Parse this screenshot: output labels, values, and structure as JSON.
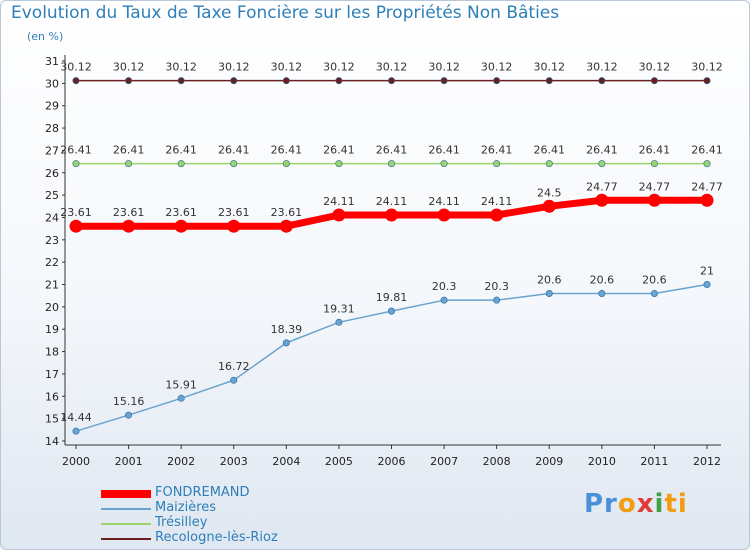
{
  "header": {
    "title": "Evolution du Taux de Taxe Foncière sur les Propriétés Non Bâties",
    "subtitle": "(en %)"
  },
  "logo": {
    "parts": [
      "Pr",
      "o",
      "x",
      "i",
      "ti"
    ],
    "colors": [
      "#4a90d9",
      "#f39c12",
      "#e53935",
      "#43a047",
      "#f39c12"
    ]
  },
  "chart_data": {
    "type": "line",
    "title": "Evolution du Taux de Taxe Foncière sur les Propriétés Non Bâties",
    "ylabel": "(en %)",
    "xlabel": "",
    "x": [
      "2000",
      "2001",
      "2002",
      "2003",
      "2004",
      "2005",
      "2006",
      "2007",
      "2008",
      "2009",
      "2010",
      "2011",
      "2012"
    ],
    "ylim": [
      14,
      31
    ],
    "yticks": [
      14,
      15,
      16,
      17,
      18,
      19,
      20,
      21,
      22,
      23,
      24,
      25,
      26,
      27,
      28,
      29,
      30,
      31
    ],
    "grid": false,
    "legend_position": "bottom-left",
    "series": [
      {
        "name": "Recologne-lès-Rioz",
        "color": "#6b1f1f",
        "values": [
          30.12,
          30.12,
          30.12,
          30.12,
          30.12,
          30.12,
          30.12,
          30.12,
          30.12,
          30.12,
          30.12,
          30.12,
          30.12
        ],
        "labels": [
          "30.12",
          "30.12",
          "30.12",
          "30.12",
          "30.12",
          "30.12",
          "30.12",
          "30.12",
          "30.12",
          "30.12",
          "30.12",
          "30.12",
          "30.12"
        ]
      },
      {
        "name": "Trésilley",
        "color": "#9bd46a",
        "values": [
          26.41,
          26.41,
          26.41,
          26.41,
          26.41,
          26.41,
          26.41,
          26.41,
          26.41,
          26.41,
          26.41,
          26.41,
          26.41
        ],
        "labels": [
          "26.41",
          "26.41",
          "26.41",
          "26.41",
          "26.41",
          "26.41",
          "26.41",
          "26.41",
          "26.41",
          "26.41",
          "26.41",
          "26.41",
          "26.41"
        ]
      },
      {
        "name": "FONDREMAND",
        "color": "#ff0000",
        "values": [
          23.61,
          23.61,
          23.61,
          23.61,
          23.61,
          24.11,
          24.11,
          24.11,
          24.11,
          24.5,
          24.77,
          24.77,
          24.77
        ],
        "labels": [
          "23.61",
          "23.61",
          "23.61",
          "23.61",
          "23.61",
          "24.11",
          "24.11",
          "24.11",
          "24.11",
          "24.5",
          "24.77",
          "24.77",
          "24.77"
        ]
      },
      {
        "name": "Maizières",
        "color": "#6aa3cf",
        "values": [
          14.44,
          15.16,
          15.91,
          16.72,
          18.39,
          19.31,
          19.81,
          20.3,
          20.3,
          20.6,
          20.6,
          20.6,
          21
        ],
        "labels": [
          "14.44",
          "15.16",
          "15.91",
          "16.72",
          "18.39",
          "19.31",
          "19.81",
          "20.3",
          "20.3",
          "20.6",
          "20.6",
          "20.6",
          "21"
        ]
      }
    ],
    "legend": [
      "FONDREMAND",
      "Maizières",
      "Trésilley",
      "Recologne-lès-Rioz"
    ]
  }
}
